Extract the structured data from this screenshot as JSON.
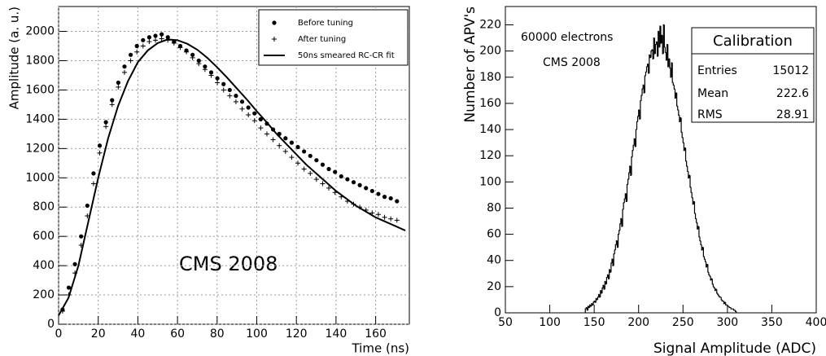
{
  "chart_data": [
    {
      "type": "scatter",
      "xlabel": "Time (ns)",
      "ylabel": "Amplitude (a. u.)",
      "annotations": [
        "CMS 2008"
      ],
      "xlim": [
        0,
        177
      ],
      "ylim": [
        0,
        2170
      ],
      "xticks": [
        0,
        20,
        40,
        60,
        80,
        100,
        120,
        140,
        160
      ],
      "yticks": [
        0,
        200,
        400,
        600,
        800,
        1000,
        1200,
        1400,
        1600,
        1800,
        2000
      ],
      "grid": true,
      "legend": "upper right",
      "series": [
        {
          "name": "Before tuning",
          "color": "#000000",
          "marker": "circle",
          "x": [
            2,
            5.125,
            8.25,
            11.375,
            14.5,
            17.625,
            20.75,
            23.875,
            27,
            30.125,
            33.25,
            36.375,
            39.5,
            42.625,
            45.75,
            48.875,
            52,
            55.125,
            58.25,
            61.375,
            64.5,
            67.625,
            70.75,
            73.875,
            77,
            80.125,
            83.25,
            86.375,
            89.5,
            92.625,
            95.75,
            98.875,
            102,
            105.125,
            108.25,
            111.375,
            114.5,
            117.625,
            120.75,
            123.875,
            127,
            130.125,
            133.25,
            136.375,
            139.5,
            142.625,
            145.75,
            148.875,
            152,
            155.125,
            158.25,
            161.375,
            164.5,
            167.625,
            170.75
          ],
          "values": [
            100,
            250,
            410,
            600,
            810,
            1030,
            1220,
            1380,
            1530,
            1650,
            1760,
            1840,
            1900,
            1940,
            1960,
            1970,
            1980,
            1960,
            1930,
            1900,
            1870,
            1840,
            1800,
            1760,
            1720,
            1680,
            1640,
            1600,
            1560,
            1520,
            1480,
            1440,
            1400,
            1370,
            1330,
            1300,
            1270,
            1240,
            1210,
            1180,
            1150,
            1120,
            1090,
            1060,
            1040,
            1010,
            990,
            970,
            950,
            930,
            910,
            890,
            870,
            860,
            840
          ]
        },
        {
          "name": "After tuning",
          "color": "#000000",
          "marker": "plus",
          "x": [
            2,
            5.125,
            8.25,
            11.375,
            14.5,
            17.625,
            20.75,
            23.875,
            27,
            30.125,
            33.25,
            36.375,
            39.5,
            42.625,
            45.75,
            48.875,
            52,
            55.125,
            58.25,
            61.375,
            64.5,
            67.625,
            70.75,
            73.875,
            77,
            80.125,
            83.25,
            86.375,
            89.5,
            92.625,
            95.75,
            98.875,
            102,
            105.125,
            108.25,
            111.375,
            114.5,
            117.625,
            120.75,
            123.875,
            127,
            130.125,
            133.25,
            136.375,
            139.5,
            142.625,
            145.75,
            148.875,
            152,
            155.125,
            158.25,
            161.375,
            164.5,
            167.625,
            170.75
          ],
          "values": [
            90,
            200,
            350,
            540,
            740,
            960,
            1170,
            1350,
            1500,
            1620,
            1720,
            1800,
            1860,
            1900,
            1930,
            1940,
            1950,
            1940,
            1920,
            1890,
            1860,
            1820,
            1780,
            1740,
            1700,
            1650,
            1600,
            1560,
            1520,
            1470,
            1430,
            1390,
            1340,
            1300,
            1260,
            1220,
            1180,
            1140,
            1100,
            1060,
            1030,
            990,
            960,
            930,
            900,
            870,
            840,
            820,
            800,
            780,
            760,
            750,
            730,
            720,
            710
          ]
        },
        {
          "name": "50ns smeared RC-CR fit",
          "color": "#000000",
          "marker": "line",
          "x": [
            0,
            5,
            10,
            15,
            20,
            25,
            30,
            35,
            40,
            45,
            50,
            55,
            60,
            65,
            70,
            75,
            80,
            85,
            90,
            95,
            100,
            105,
            110,
            115,
            120,
            125,
            130,
            135,
            140,
            145,
            150,
            155,
            160,
            165,
            170,
            175
          ],
          "values": [
            60,
            180,
            400,
            700,
            1000,
            1270,
            1490,
            1660,
            1790,
            1870,
            1920,
            1945,
            1940,
            1915,
            1875,
            1820,
            1755,
            1685,
            1610,
            1535,
            1455,
            1380,
            1300,
            1230,
            1160,
            1090,
            1030,
            970,
            910,
            860,
            810,
            770,
            730,
            700,
            670,
            640
          ]
        }
      ]
    },
    {
      "type": "histogram",
      "xlabel": "Signal Amplitude (ADC)",
      "ylabel": "Number of APV's",
      "annotations": [
        "60000 electrons",
        "CMS 2008"
      ],
      "stats_box": {
        "title": "Calibration",
        "rows": [
          {
            "label": "Entries",
            "value": 15012
          },
          {
            "label": "Mean",
            "value": 222.6
          },
          {
            "label": "RMS",
            "value": 28.91
          }
        ]
      },
      "xlim": [
        50,
        400
      ],
      "ylim": [
        0,
        234
      ],
      "xticks": [
        50,
        100,
        150,
        200,
        250,
        300,
        350,
        400
      ],
      "yticks": [
        0,
        20,
        40,
        60,
        80,
        100,
        120,
        140,
        160,
        180,
        200,
        220
      ],
      "grid": false,
      "color": "#000000",
      "bins": [
        140,
        141,
        142,
        143,
        144,
        145,
        146,
        147,
        148,
        149,
        150,
        151,
        152,
        153,
        154,
        155,
        156,
        157,
        158,
        159,
        160,
        161,
        162,
        163,
        164,
        165,
        166,
        167,
        168,
        169,
        170,
        171,
        172,
        173,
        174,
        175,
        176,
        177,
        178,
        179,
        180,
        181,
        182,
        183,
        184,
        185,
        186,
        187,
        188,
        189,
        190,
        191,
        192,
        193,
        194,
        195,
        196,
        197,
        198,
        199,
        200,
        201,
        202,
        203,
        204,
        205,
        206,
        207,
        208,
        209,
        210,
        211,
        212,
        213,
        214,
        215,
        216,
        217,
        218,
        219,
        220,
        221,
        222,
        223,
        224,
        225,
        226,
        227,
        228,
        229,
        230,
        231,
        232,
        233,
        234,
        235,
        236,
        237,
        238,
        239,
        240,
        241,
        242,
        243,
        244,
        245,
        246,
        247,
        248,
        249,
        250,
        251,
        252,
        253,
        254,
        255,
        256,
        257,
        258,
        259,
        260,
        261,
        262,
        263,
        264,
        265,
        266,
        267,
        268,
        269,
        270,
        271,
        272,
        273,
        274,
        275,
        276,
        277,
        278,
        279,
        280,
        281,
        282,
        283,
        284,
        285,
        286,
        287,
        288,
        289,
        290,
        291,
        292,
        293,
        294,
        295,
        296,
        297,
        298,
        299,
        300,
        301,
        302,
        303,
        304,
        305,
        306,
        307,
        308,
        309,
        310
      ],
      "values": [
        3,
        4,
        2,
        5,
        4,
        6,
        5,
        7,
        6,
        8,
        9,
        8,
        11,
        10,
        12,
        14,
        12,
        17,
        15,
        19,
        21,
        18,
        24,
        22,
        27,
        29,
        26,
        33,
        31,
        38,
        41,
        36,
        45,
        48,
        52,
        55,
        50,
        60,
        63,
        68,
        72,
        66,
        79,
        84,
        87,
        91,
        85,
        98,
        102,
        107,
        112,
        105,
        119,
        124,
        128,
        133,
        127,
        140,
        146,
        150,
        155,
        148,
        162,
        166,
        171,
        174,
        168,
        181,
        184,
        188,
        190,
        183,
        197,
        195,
        200,
        201,
        194,
        210,
        198,
        205,
        207,
        196,
        215,
        203,
        219,
        206,
        212,
        198,
        220,
        203,
        199,
        193,
        205,
        188,
        194,
        187,
        180,
        191,
        176,
        174,
        171,
        164,
        168,
        158,
        155,
        151,
        146,
        149,
        138,
        134,
        130,
        124,
        126,
        116,
        112,
        108,
        103,
        105,
        96,
        92,
        88,
        83,
        85,
        76,
        72,
        69,
        64,
        66,
        58,
        55,
        52,
        48,
        50,
        43,
        41,
        39,
        35,
        37,
        31,
        29,
        28,
        25,
        26,
        22,
        20,
        19,
        17,
        18,
        15,
        14,
        13,
        12,
        12,
        10,
        9,
        9,
        7,
        8,
        6,
        6,
        5,
        5,
        4,
        4,
        3,
        3,
        3,
        2,
        2,
        1
      ]
    }
  ]
}
